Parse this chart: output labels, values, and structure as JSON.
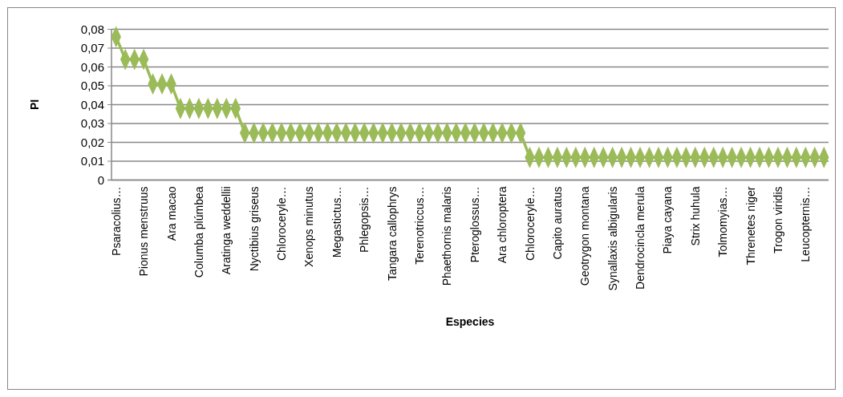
{
  "chart_data": {
    "type": "line",
    "xlabel": "Especies",
    "ylabel": "PI",
    "categories": [
      "Psaracolius…",
      null,
      null,
      "Pionus menstruus",
      null,
      null,
      "Ara  macao",
      null,
      null,
      "Columba plúmbea",
      null,
      null,
      "Aratinga weddellii",
      null,
      null,
      "Nyctibius griseus",
      null,
      null,
      "Chloroceryle…",
      null,
      null,
      "Xenops minutus",
      null,
      null,
      "Megastictus…",
      null,
      null,
      "Phlegopsis…",
      null,
      null,
      "Tangara callophrys",
      null,
      null,
      "Terenotriccus…",
      null,
      null,
      "Phaethornis malaris",
      null,
      null,
      "Pteroglossus…",
      null,
      null,
      "Ara chloroptera",
      null,
      null,
      "Chloroceryle…",
      null,
      null,
      "Capito auratus",
      null,
      null,
      "Geotrygon montana",
      null,
      null,
      "Synallaxis albigularis",
      null,
      null,
      "Dendrocincla merula",
      null,
      null,
      "Piaya cayana",
      null,
      null,
      "Strix huhula",
      null,
      null,
      "Tolmomyias…",
      null,
      null,
      "Threnetes niger",
      null,
      null,
      "Trogon viridis",
      null,
      null,
      "Leucopternis…",
      null,
      null
    ],
    "series": [
      {
        "color": "#9bbb59",
        "values": [
          0.076,
          0.064,
          0.064,
          0.064,
          0.051,
          0.051,
          0.051,
          0.038,
          0.038,
          0.038,
          0.038,
          0.038,
          0.038,
          0.038,
          0.025,
          0.025,
          0.025,
          0.025,
          0.025,
          0.025,
          0.025,
          0.025,
          0.025,
          0.025,
          0.025,
          0.025,
          0.025,
          0.025,
          0.025,
          0.025,
          0.025,
          0.025,
          0.025,
          0.025,
          0.025,
          0.025,
          0.025,
          0.025,
          0.025,
          0.025,
          0.025,
          0.025,
          0.025,
          0.025,
          0.025,
          0.012,
          0.012,
          0.012,
          0.012,
          0.012,
          0.012,
          0.012,
          0.012,
          0.012,
          0.012,
          0.012,
          0.012,
          0.012,
          0.012,
          0.012,
          0.012,
          0.012,
          0.012,
          0.012,
          0.012,
          0.012,
          0.012,
          0.012,
          0.012,
          0.012,
          0.012,
          0.012,
          0.012,
          0.012,
          0.012,
          0.012,
          0.012,
          0.012
        ]
      }
    ],
    "ylim": [
      0,
      0.08
    ],
    "yticks": [
      0,
      {
        "value": 0.01,
        "label": "0,01"
      },
      {
        "value": 0.02,
        "label": "0,02"
      },
      {
        "value": 0.03,
        "label": "0,03"
      },
      {
        "value": 0.04,
        "label": "0,04"
      },
      {
        "value": 0.05,
        "label": "0,05"
      },
      {
        "value": 0.06,
        "label": "0,06"
      },
      {
        "value": 0.07,
        "label": "0,07"
      },
      {
        "value": 0.08,
        "label": "0,08"
      }
    ],
    "grid": "y",
    "marker": "diamond",
    "line_style": "solid"
  }
}
